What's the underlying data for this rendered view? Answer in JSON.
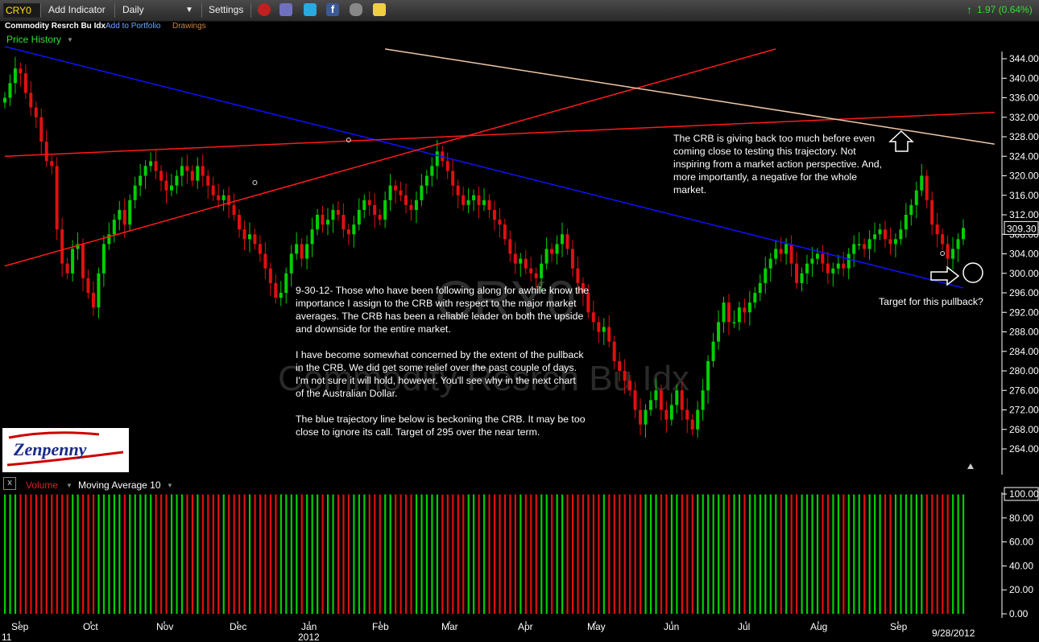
{
  "toolbar": {
    "symbol": "CRY0",
    "add_indicator": "Add Indicator",
    "period": "Daily",
    "settings": "Settings",
    "change": "1.97 (0.64%)",
    "change_color": "#2ee02e"
  },
  "subheader": {
    "name": "Commodity Resrch Bu Idx",
    "add_to_portfolio": "Add to Portfolio",
    "drawings": "Drawings",
    "price_history": "Price History"
  },
  "watermark": {
    "symbol": "CRY0",
    "name": "Commodity Resrch Bu Idx"
  },
  "annotations": {
    "right_note": [
      "The CRB is giving back too much before even",
      "coming close to testing this trajectory. Not",
      "inspiring from a market action perspective. And,",
      "more importantly, a negative for the whole",
      "market."
    ],
    "target_note": "Target for this pullback?",
    "main_note": [
      "9-30-12- Those who have been following along for awhile know the",
      "importance I assign to the CRB with respect to the major market",
      "averages. The CRB has been a reliable leader on both the upside",
      "and downside for the entire market.",
      "",
      "I have become somewhat concerned by the extent of the pullback",
      "in the CRB. We did get some relief over the past couple of days.",
      "I'm not sure it will hold, however. You'll see why in the next chart",
      "of the Australian Dollar.",
      "",
      "The blue trajectory line below is beckoning the CRB. It may be too",
      "close to ignore its call. Target of 295 over the near term."
    ]
  },
  "logo_text": "Zenpenny",
  "volume_panel": {
    "label": "Volume",
    "indicator": "Moving Average 10",
    "y_ticks": [
      "100.00",
      "80.00",
      "60.00",
      "40.00",
      "20.00",
      "0.00"
    ]
  },
  "colors": {
    "up_candle": "#00d000",
    "down_candle": "#e01010",
    "blue_trendline": "#1010ff",
    "red_trendline": "#ff1a1a",
    "tan_trendline": "#f0c8a8"
  },
  "chart_data": {
    "type": "candlestick",
    "y_axis": {
      "ticks": [
        344,
        340,
        336,
        332,
        328,
        324,
        320,
        316,
        312,
        308,
        304,
        300,
        296,
        292,
        288,
        284,
        280,
        276,
        272,
        268,
        264
      ],
      "tick_labels": [
        "344.00",
        "340.00",
        "336.00",
        "332.00",
        "328.00",
        "324.00",
        "320.00",
        "316.00",
        "312.00",
        "308.00",
        "304.00",
        "300.00",
        "296.00",
        "292.00",
        "288.00",
        "284.00",
        "280.00",
        "276.00",
        "272.00",
        "268.00",
        "264.00"
      ],
      "range": [
        262,
        347
      ],
      "last_price_label": "309.30",
      "last_price": 309.3
    },
    "x_axis": {
      "months": [
        "Sep",
        "Oct",
        "Nov",
        "Dec",
        "Jan",
        "Feb",
        "Mar",
        "Apr",
        "May",
        "Jun",
        "Jul",
        "Aug",
        "Sep"
      ],
      "year_labels": [
        "11",
        "2012"
      ],
      "last_date": "9/28/2012"
    },
    "closes": [
      336,
      339,
      342,
      341,
      337,
      334,
      332,
      327,
      323,
      322,
      309,
      302,
      300,
      305,
      306,
      299,
      296,
      293,
      300,
      306,
      308,
      311,
      313,
      310,
      315,
      318,
      320,
      322,
      323,
      321,
      319,
      317,
      318,
      320,
      322,
      321,
      319,
      322,
      320,
      318,
      316,
      315,
      316,
      314,
      312,
      309,
      307,
      308,
      306,
      304,
      301,
      298,
      295,
      296,
      300,
      304,
      306,
      303,
      306,
      309,
      312,
      310,
      311,
      313,
      312,
      309,
      308,
      310,
      313,
      315,
      314,
      312,
      311,
      315,
      318,
      317,
      316,
      314,
      313,
      315,
      318,
      320,
      322,
      325,
      323,
      321,
      318,
      316,
      314,
      315,
      316,
      314,
      315,
      313,
      311,
      310,
      307,
      304,
      302,
      303,
      301,
      300,
      299,
      302,
      305,
      304,
      306,
      308,
      305,
      301,
      298,
      296,
      292,
      290,
      288,
      289,
      286,
      282,
      280,
      278,
      276,
      272,
      269,
      272,
      274,
      276,
      272,
      270,
      273,
      276,
      272,
      270,
      268,
      272,
      276,
      282,
      286,
      290,
      294,
      290,
      290,
      293,
      292,
      294,
      296,
      298,
      301,
      303,
      305,
      304,
      306,
      302,
      298,
      300,
      302,
      303,
      304,
      302,
      300,
      301,
      302,
      301,
      304,
      306,
      306,
      305,
      307,
      308,
      309,
      307,
      306,
      307,
      309,
      312,
      314,
      317,
      320,
      315,
      310,
      308,
      306,
      303,
      305,
      307,
      309.3
    ],
    "volume": {
      "bars": 185,
      "relative_values": [
        0.996,
        0.996
      ],
      "note": "volume bars alternate green/red and all reach approximately 100"
    },
    "trendlines": [
      {
        "name": "blue",
        "from": {
          "index": 0,
          "price": 346.5
        },
        "to": {
          "index": 184,
          "price": 297
        }
      },
      {
        "name": "red-1",
        "from": {
          "index": 0,
          "price": 301.5
        },
        "to": {
          "index": 148,
          "price": 346
        }
      },
      {
        "name": "red-2",
        "from": {
          "index": 0,
          "price": 324
        },
        "to": {
          "index": 190,
          "price": 333
        }
      },
      {
        "name": "tan",
        "from": {
          "index": 73,
          "price": 346
        },
        "to": {
          "index": 190,
          "price": 326.5
        }
      }
    ],
    "grid": false
  }
}
